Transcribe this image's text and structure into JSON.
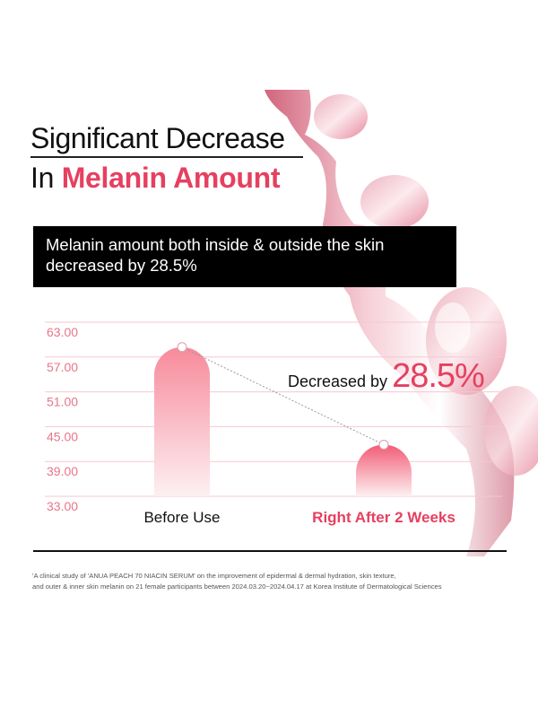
{
  "title": {
    "line1": "Significant Decrease",
    "line2_prefix": "In ",
    "line2_highlight": "Melanin Amount"
  },
  "banner": {
    "line1": "Melanin amount both inside & outside the skin",
    "line2": "decreased by 28.5%"
  },
  "callout": {
    "label": "Decreased by ",
    "value": "28.5%"
  },
  "footnote": {
    "line1": "'A clinical study of 'ANUA PEACH 70 NIACIN SERUM' on the improvement of epidermal & dermal hydration, skin texture,",
    "line2": "and outer & inner skin melanin on 21 female participants between 2024.03.20~2024.04.17 at Korea Institute of Dermatological Sciences"
  },
  "colors": {
    "accent": "#e6405f",
    "axis_label": "#e8758a",
    "grid": "#f3c9d1",
    "banner_bg": "#000000"
  },
  "chart_data": {
    "type": "bar",
    "categories": [
      "Before Use",
      "Right After 2 Weeks"
    ],
    "values": [
      58.7,
      41.9
    ],
    "ylim": [
      33,
      63
    ],
    "yticks": [
      "63.00",
      "57.00",
      "51.00",
      "45.00",
      "39.00",
      "33.00"
    ],
    "grid": true,
    "connector_line": "dotted",
    "category_colors": [
      "#111111",
      "#e6405f"
    ]
  }
}
